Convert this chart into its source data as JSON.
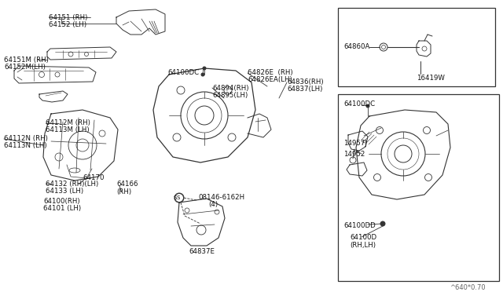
{
  "bg_color": "#f0f0f0",
  "line_color": "#333333",
  "text_color": "#111111",
  "fig_width": 6.4,
  "fig_height": 3.72,
  "dpi": 100,
  "watermark": "^640*0.70",
  "labels": {
    "l64151": "64151 (RH)",
    "l64152": "64152 (LH)",
    "l64151M": "64151M (RH)",
    "l64152M": "64152M(LH)",
    "l64112M": "64112M (RH)",
    "l64113M": "64113M (LH)",
    "l64112N": "64112N (RH)",
    "l64113N": "64113N (LH)",
    "l64132": "64132 (RH)(LH)",
    "l64133": "64133 (LH)",
    "l64170": "64170",
    "l64166": "64166\n(RH)",
    "l64100RH": "64100(RH)",
    "l64101": "64101 (LH)",
    "l64100DC_c": "64100DC",
    "l64894": "64894(RH)",
    "l64895": "64895(LH)",
    "l64826E": "64826E  (RH)",
    "l64826EA": "64826EA(LH)",
    "l64836": "64836(RH)",
    "l64837": "64837(LH)",
    "l08146": "08146-6162H",
    "l08146b": "(4)",
    "l64837E": "64837E",
    "l64860A": "64860A",
    "l16419W": "16419W",
    "l64100DC_r": "64100DC",
    "l14957J": "14957J",
    "l14952": "14952",
    "l64100DD": "64100DD",
    "l64100D": "64100D\n(RH,LH)"
  }
}
